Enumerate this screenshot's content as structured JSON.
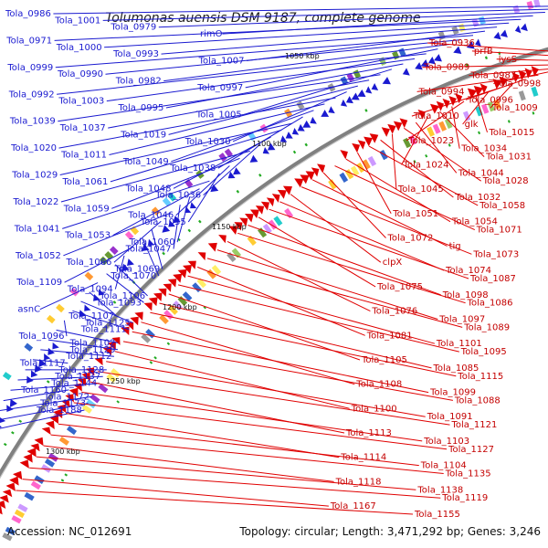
{
  "title": "Tolumonas auensis DSM 9187, complete genome",
  "footer": {
    "accession": "Accession: NC_012691",
    "summary": "Topology: circular; Length: 3,471,292 bp; Genes: 3,246"
  },
  "ticks": [
    "1050 kbp",
    "1100 kbp",
    "1150 kbp",
    "1200 kbp",
    "1250 kbp",
    "1300 kbp"
  ],
  "colors": {
    "forward": "#1a1ad0",
    "reverse": "#e00000",
    "backbone": "#808080"
  },
  "forward_genes": [
    "Tola_0986",
    "Tola_1001",
    "Tola_0979",
    "rimO",
    "Tola_0971",
    "Tola_1000",
    "Tola_0993",
    "Tola_1007",
    "Tola_0999",
    "Tola_0990",
    "Tola_0982",
    "Tola_0997",
    "Tola_0992",
    "Tola_1003",
    "Tola_0995",
    "Tola_1005",
    "Tola_1039",
    "Tola_1037",
    "Tola_1019",
    "Tola_1030",
    "Tola_1020",
    "Tola_1011",
    "Tola_1049",
    "Tola_1038",
    "Tola_1029",
    "Tola_1061",
    "Tola_1048",
    "Tola_1036",
    "Tola_1022",
    "Tola_1059",
    "Tola_1046",
    "Tola_1035",
    "Tola_1041",
    "Tola_1053",
    "Tola_1060",
    "Tola_1047",
    "Tola_1052",
    "Tola_1066",
    "Tola_1069",
    "Tola_1070",
    "Tola_1109",
    "Tola_1094",
    "Tola_1106",
    "Tola_1093",
    "asnC",
    "Tola_1107",
    "Tola_1125",
    "Tola_1111",
    "Tola_1096",
    "Tola_1102",
    "Tola_1129",
    "Tola_1112",
    "Tola_1117",
    "Tola_1128",
    "Tola_1137",
    "Tola_1144",
    "Tola_1160",
    "Tola_1172",
    "Tola_1173",
    "Tola_1188"
  ],
  "reverse_genes": [
    "Tola_0936",
    "prfB",
    "lysS",
    "Tola_0989",
    "Tola_0987",
    "Tola_0998",
    "Tola_0994",
    "Tola_0996",
    "Tola_1009",
    "Tola_1010",
    "glk",
    "Tola_1015",
    "Tola_1023",
    "Tola_1034",
    "Tola_1031",
    "Tola_1024",
    "Tola_1044",
    "Tola_1028",
    "Tola_1045",
    "Tola_1032",
    "Tola_1058",
    "Tola_1051",
    "Tola_1054",
    "Tola_1071",
    "Tola_1072",
    "tig",
    "Tola_1073",
    "clpX",
    "Tola_1074",
    "Tola_1087",
    "Tola_1075",
    "Tola_1098",
    "Tola_1086",
    "Tola_1076",
    "Tola_1097",
    "Tola_1089",
    "Tola_1081",
    "Tola_1101",
    "Tola_1095",
    "Tola_1105",
    "Tola_1085",
    "Tola_1115",
    "Tola_1108",
    "Tola_1099",
    "Tola_1088",
    "Tola_1100",
    "Tola_1091",
    "Tola_1121",
    "Tola_1113",
    "Tola_1103",
    "Tola_1127",
    "Tola_1114",
    "Tola_1104",
    "Tola_1135",
    "Tola_1118",
    "Tola_1138",
    "Tola_1119",
    "Tola_1167",
    "Tola_1155"
  ]
}
